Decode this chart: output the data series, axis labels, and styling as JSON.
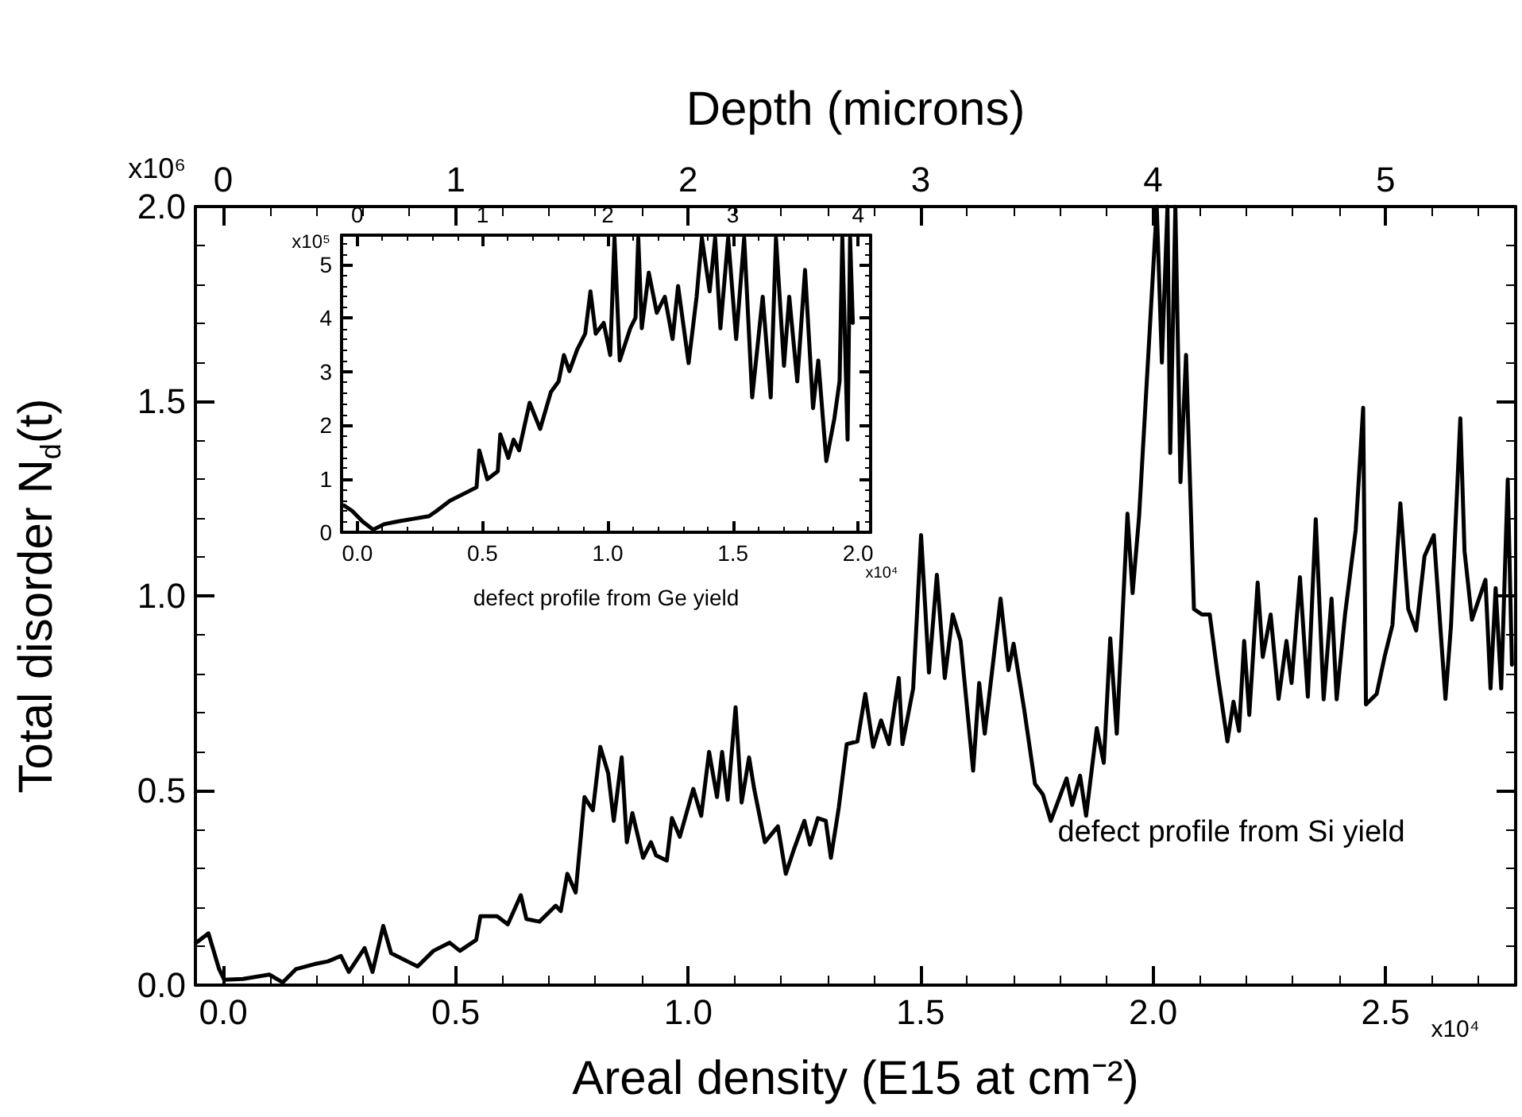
{
  "chart_data": [
    {
      "type": "line",
      "xlabel": "Areal density (E15 at cm⁻²)",
      "ylabel": "Total disorder N$_{d}$(t)",
      "x2label": "Depth (microns)",
      "xlim": [
        -0.06,
        2.78
      ],
      "xticks": [
        {
          "value": 0,
          "label": "0.0"
        },
        {
          "value": 0.5,
          "label": "0.5"
        },
        {
          "value": 1,
          "label": "1.0"
        },
        {
          "value": 1.5,
          "label": "1.5"
        },
        {
          "value": 2,
          "label": "2.0"
        },
        {
          "value": 2.5,
          "label": "2.5"
        }
      ],
      "x2lim": [
        -0.12,
        5.56
      ],
      "x2ticks": [
        0,
        1,
        2,
        3,
        4,
        5
      ],
      "ylim": [
        0,
        2
      ],
      "yticks": [
        {
          "value": 0,
          "label": "0.0"
        },
        {
          "value": 0.5,
          "label": "0.5"
        },
        {
          "value": 1,
          "label": "1.0"
        },
        {
          "value": 1.5,
          "label": "1.5"
        },
        {
          "value": 2,
          "label": "2.0"
        }
      ],
      "annotations": [
        "x10⁴",
        "defect profile from Si yield",
        "x10⁶"
      ],
      "series": [
        {
          "color": "#000000",
          "x": [
            -0.058,
            -0.032,
            -0.009,
            0.002,
            0.042,
            0.099,
            0.128,
            0.156,
            0.196,
            0.225,
            0.253,
            0.27,
            0.304,
            0.321,
            0.344,
            0.361,
            0.396,
            0.418,
            0.452,
            0.487,
            0.509,
            0.544,
            0.553,
            0.589,
            0.612,
            0.64,
            0.652,
            0.68,
            0.715,
            0.726,
            0.74,
            0.758,
            0.777,
            0.795,
            0.811,
            0.828,
            0.84,
            0.857,
            0.868,
            0.88,
            0.903,
            0.92,
            0.931,
            0.954,
            0.965,
            0.982,
            1.011,
            1.028,
            1.045,
            1.062,
            1.073,
            1.085,
            1.102,
            1.115,
            1.131,
            1.142,
            1.165,
            1.193,
            1.21,
            1.227,
            1.25,
            1.262,
            1.279,
            1.296,
            1.307,
            1.324,
            1.341,
            1.364,
            1.381,
            1.398,
            1.415,
            1.432,
            1.453,
            1.461,
            1.484,
            1.501,
            1.518,
            1.535,
            1.552,
            1.569,
            1.586,
            1.613,
            1.626,
            1.638,
            1.672,
            1.689,
            1.7,
            1.723,
            1.746,
            1.763,
            1.78,
            1.814,
            1.826,
            1.843,
            1.856,
            1.879,
            1.894,
            1.908,
            1.922,
            1.945,
            1.956,
            1.97,
            1.997,
            2.008,
            2.019,
            2.031,
            2.037,
            2.048,
            2.059,
            2.071,
            2.088,
            2.105,
            2.122,
            2.139,
            2.16,
            2.173,
            2.185,
            2.196,
            2.207,
            2.225,
            2.236,
            2.253,
            2.27,
            2.287,
            2.298,
            2.316,
            2.333,
            2.35,
            2.367,
            2.384,
            2.395,
            2.413,
            2.436,
            2.452,
            2.458,
            2.481,
            2.498,
            2.515,
            2.532,
            2.549,
            2.566,
            2.584,
            2.604,
            2.629,
            2.641,
            2.661,
            2.67,
            2.686,
            2.715,
            2.726,
            2.737,
            2.749,
            2.763,
            2.772
          ],
          "values": [
            0.109,
            0.133,
            0.041,
            0.014,
            0.016,
            0.027,
            0.007,
            0.041,
            0.054,
            0.061,
            0.075,
            0.034,
            0.095,
            0.034,
            0.152,
            0.082,
            0.061,
            0.048,
            0.088,
            0.109,
            0.088,
            0.116,
            0.177,
            0.177,
            0.156,
            0.231,
            0.17,
            0.163,
            0.204,
            0.19,
            0.286,
            0.238,
            0.483,
            0.449,
            0.612,
            0.544,
            0.422,
            0.585,
            0.367,
            0.442,
            0.327,
            0.367,
            0.333,
            0.32,
            0.429,
            0.381,
            0.504,
            0.435,
            0.599,
            0.483,
            0.599,
            0.476,
            0.714,
            0.469,
            0.585,
            0.504,
            0.367,
            0.408,
            0.286,
            0.347,
            0.422,
            0.361,
            0.429,
            0.422,
            0.327,
            0.456,
            0.619,
            0.626,
            0.748,
            0.612,
            0.68,
            0.619,
            0.789,
            0.619,
            0.762,
            1.156,
            0.803,
            1.054,
            0.789,
            0.952,
            0.884,
            0.551,
            0.776,
            0.646,
            0.993,
            0.809,
            0.877,
            0.707,
            0.517,
            0.49,
            0.422,
            0.531,
            0.463,
            0.538,
            0.435,
            0.66,
            0.571,
            0.891,
            0.646,
            1.211,
            1.007,
            1.204,
            1.769,
            2.0,
            1.599,
            2.0,
            1.367,
            2.0,
            1.292,
            1.619,
            0.966,
            0.952,
            0.952,
            0.797,
            0.626,
            0.728,
            0.653,
            0.884,
            0.694,
            1.034,
            0.843,
            0.952,
            0.735,
            0.884,
            0.776,
            1.048,
            0.741,
            1.197,
            0.734,
            0.993,
            0.734,
            0.952,
            1.17,
            1.483,
            0.721,
            0.748,
            0.843,
            0.925,
            1.238,
            0.966,
            0.911,
            1.102,
            1.156,
            0.735,
            0.925,
            1.456,
            1.116,
            0.939,
            1.041,
            0.762,
            1.02,
            0.762,
            1.299,
            0.823
          ]
        }
      ]
    },
    {
      "type": "line",
      "xlabel": "defect profile from Ge yield",
      "xlim": [
        -0.063,
        2.05
      ],
      "xticks": [
        {
          "value": 0,
          "label": "0.0"
        },
        {
          "value": 0.5,
          "label": "0.5"
        },
        {
          "value": 1,
          "label": "1.0"
        },
        {
          "value": 1.5,
          "label": "1.5"
        },
        {
          "value": 2,
          "label": "2.0"
        }
      ],
      "x2lim": [
        -0.126,
        4.1
      ],
      "x2ticks": [
        0,
        1,
        2,
        3,
        4
      ],
      "ylim": [
        0,
        5.55
      ],
      "yticks": [
        0,
        1,
        2,
        3,
        4,
        5
      ],
      "annotations": [
        "x10⁴",
        "x10⁵"
      ],
      "series": [
        {
          "color": "#000000",
          "x": [
            -0.053,
            -0.021,
            0.021,
            0.063,
            0.106,
            0.159,
            0.222,
            0.286,
            0.317,
            0.37,
            0.434,
            0.476,
            0.487,
            0.519,
            0.561,
            0.571,
            0.603,
            0.624,
            0.646,
            0.688,
            0.73,
            0.773,
            0.804,
            0.825,
            0.847,
            0.878,
            0.91,
            0.931,
            0.952,
            0.984,
            1.01,
            1.027,
            1.048,
            1.09,
            1.111,
            1.122,
            1.136,
            1.164,
            1.196,
            1.228,
            1.259,
            1.281,
            1.323,
            1.355,
            1.376,
            1.407,
            1.429,
            1.45,
            1.481,
            1.513,
            1.545,
            1.577,
            1.619,
            1.651,
            1.672,
            1.704,
            1.725,
            1.757,
            1.788,
            1.82,
            1.841,
            1.873,
            1.905,
            1.926,
            1.937,
            1.958,
            1.968,
            1.979
          ],
          "values": [
            0.5,
            0.4,
            0.2,
            0.05,
            0.15,
            0.2,
            0.25,
            0.3,
            0.4,
            0.59,
            0.74,
            0.84,
            1.53,
            0.99,
            1.14,
            1.83,
            1.39,
            1.73,
            1.53,
            2.42,
            1.93,
            2.62,
            2.82,
            3.31,
            3.01,
            3.41,
            3.71,
            4.5,
            3.71,
            3.91,
            3.31,
            5.5,
            3.21,
            3.81,
            4.01,
            5.5,
            3.81,
            4.85,
            4.1,
            4.4,
            3.61,
            4.6,
            3.16,
            4.4,
            5.5,
            4.5,
            5.5,
            3.81,
            5.5,
            3.61,
            5.5,
            2.52,
            4.4,
            2.52,
            5.5,
            3.11,
            4.4,
            2.82,
            4.9,
            2.32,
            3.21,
            1.33,
            2.12,
            2.82,
            5.5,
            1.73,
            5.5,
            3.91
          ]
        }
      ]
    }
  ]
}
